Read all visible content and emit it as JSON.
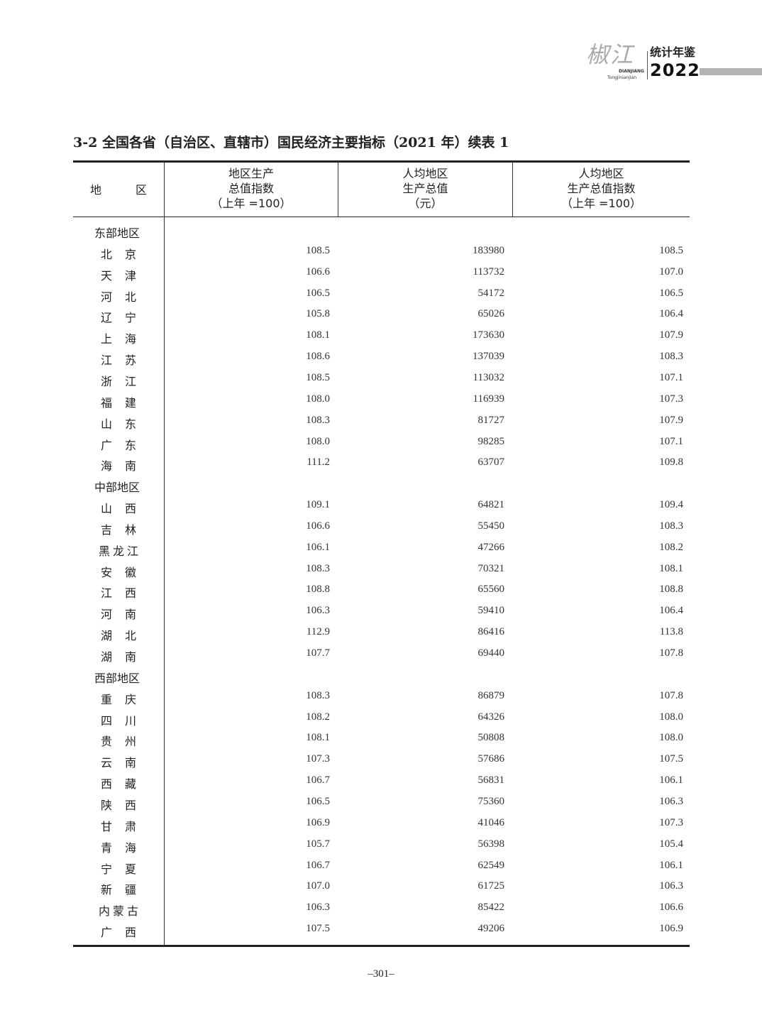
{
  "header": {
    "logo_brush": "椒江",
    "logo_pinyin_1": "DIANJIANG",
    "logo_pinyin_2": "Tongjinianjian",
    "logo_text": "统计年鉴",
    "logo_year": "2022"
  },
  "title": "3-2  全国各省（自治区、直辖市）国民经济主要指标（2021 年）续表 1",
  "table": {
    "columns": [
      {
        "lines": [
          "地　区"
        ]
      },
      {
        "lines": [
          "地区生产",
          "总值指数",
          "（上年 =100）"
        ]
      },
      {
        "lines": [
          "人均地区",
          "生产总值",
          "（元）"
        ]
      },
      {
        "lines": [
          "人均地区",
          "生产总值指数",
          "（上年 =100）"
        ]
      }
    ],
    "rows": [
      {
        "group": "东部地区"
      },
      {
        "name": "北京",
        "values": [
          "108.5",
          "183980",
          "108.5"
        ]
      },
      {
        "name": "天津",
        "values": [
          "106.6",
          "113732",
          "107.0"
        ]
      },
      {
        "name": "河北",
        "values": [
          "106.5",
          "54172",
          "106.5"
        ]
      },
      {
        "name": "辽宁",
        "values": [
          "105.8",
          "65026",
          "106.4"
        ]
      },
      {
        "name": "上海",
        "values": [
          "108.1",
          "173630",
          "107.9"
        ]
      },
      {
        "name": "江苏",
        "values": [
          "108.6",
          "137039",
          "108.3"
        ]
      },
      {
        "name": "浙江",
        "values": [
          "108.5",
          "113032",
          "107.1"
        ]
      },
      {
        "name": "福建",
        "values": [
          "108.0",
          "116939",
          "107.3"
        ]
      },
      {
        "name": "山东",
        "values": [
          "108.3",
          "81727",
          "107.9"
        ]
      },
      {
        "name": "广东",
        "values": [
          "108.0",
          "98285",
          "107.1"
        ]
      },
      {
        "name": "海南",
        "values": [
          "111.2",
          "63707",
          "109.8"
        ]
      },
      {
        "group": "中部地区"
      },
      {
        "name": "山西",
        "values": [
          "109.1",
          "64821",
          "109.4"
        ]
      },
      {
        "name": "吉林",
        "values": [
          "106.6",
          "55450",
          "108.3"
        ]
      },
      {
        "name": "黑龙江",
        "values": [
          "106.1",
          "47266",
          "108.2"
        ]
      },
      {
        "name": "安徽",
        "values": [
          "108.3",
          "70321",
          "108.1"
        ]
      },
      {
        "name": "江西",
        "values": [
          "108.8",
          "65560",
          "108.8"
        ]
      },
      {
        "name": "河南",
        "values": [
          "106.3",
          "59410",
          "106.4"
        ]
      },
      {
        "name": "湖北",
        "values": [
          "112.9",
          "86416",
          "113.8"
        ]
      },
      {
        "name": "湖南",
        "values": [
          "107.7",
          "69440",
          "107.8"
        ]
      },
      {
        "group": "西部地区"
      },
      {
        "name": "重庆",
        "values": [
          "108.3",
          "86879",
          "107.8"
        ]
      },
      {
        "name": "四川",
        "values": [
          "108.2",
          "64326",
          "108.0"
        ]
      },
      {
        "name": "贵州",
        "values": [
          "108.1",
          "50808",
          "108.0"
        ]
      },
      {
        "name": "云南",
        "values": [
          "107.3",
          "57686",
          "107.5"
        ]
      },
      {
        "name": "西藏",
        "values": [
          "106.7",
          "56831",
          "106.1"
        ]
      },
      {
        "name": "陕西",
        "values": [
          "106.5",
          "75360",
          "106.3"
        ]
      },
      {
        "name": "甘肃",
        "values": [
          "106.9",
          "41046",
          "107.3"
        ]
      },
      {
        "name": "青海",
        "values": [
          "105.7",
          "56398",
          "105.4"
        ]
      },
      {
        "name": "宁夏",
        "values": [
          "106.7",
          "62549",
          "106.1"
        ]
      },
      {
        "name": "新疆",
        "values": [
          "107.0",
          "61725",
          "106.3"
        ]
      },
      {
        "name": "内蒙古",
        "values": [
          "106.3",
          "85422",
          "106.6"
        ]
      },
      {
        "name": "广西",
        "values": [
          "107.5",
          "49206",
          "106.9"
        ]
      }
    ]
  },
  "page_number": "–301–"
}
